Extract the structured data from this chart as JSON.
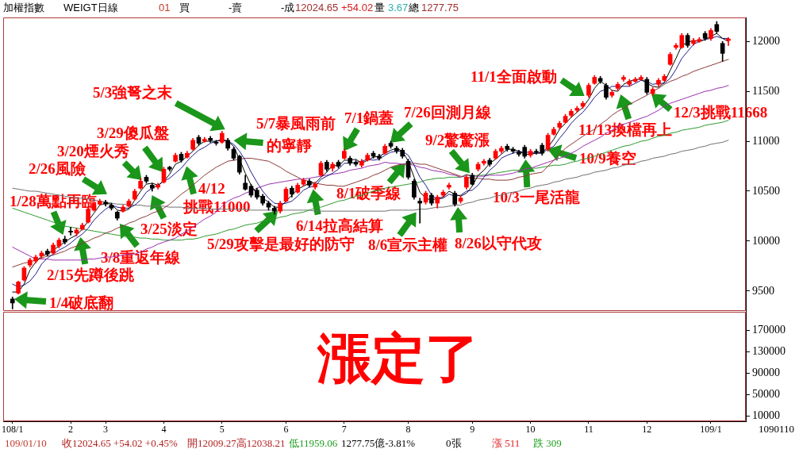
{
  "chart_data": [
    {
      "type": "candlestick",
      "title": "加權指數",
      "subtitle": "WEIGT日線",
      "categories": [
        null,
        null,
        null,
        null,
        null,
        null,
        null,
        null,
        null,
        null,
        null,
        null,
        null,
        null,
        null,
        null,
        null,
        null,
        null,
        null,
        null,
        null,
        null,
        null,
        null,
        null,
        null,
        null,
        null,
        null,
        null,
        null,
        null,
        null,
        null,
        null,
        null,
        null,
        null,
        null,
        null,
        null,
        null,
        null,
        null,
        null,
        null,
        null,
        null,
        null,
        null,
        null,
        null,
        null,
        null,
        null,
        null,
        null,
        null,
        null,
        null,
        null,
        null,
        null,
        null,
        null,
        null,
        null,
        null,
        null,
        null,
        null,
        null,
        null,
        null,
        null,
        null,
        null,
        null,
        null,
        null,
        null,
        null,
        null,
        null,
        null,
        null,
        null,
        null,
        null,
        null,
        null,
        null,
        null,
        null,
        null,
        null,
        null,
        null,
        null,
        null,
        null,
        null,
        null,
        null,
        null,
        null,
        null,
        null,
        null,
        null,
        null,
        null,
        null,
        null,
        null,
        null,
        null,
        null,
        null,
        null,
        null,
        null,
        null
      ],
      "ohlc": [
        [
          9420,
          9440,
          9320,
          9380
        ],
        [
          9480,
          9600,
          9470,
          9590
        ],
        [
          9610,
          9745,
          9600,
          9730
        ],
        [
          9760,
          9830,
          9740,
          9810
        ],
        [
          9800,
          9860,
          9780,
          9840
        ],
        [
          9850,
          9900,
          9830,
          9880
        ],
        [
          9900,
          9920,
          9850,
          9870
        ],
        [
          9880,
          9980,
          9870,
          9960
        ],
        [
          9950,
          10030,
          9930,
          10010
        ],
        [
          10020,
          10050,
          9970,
          9990
        ],
        [
          10100,
          10140,
          10060,
          10090
        ],
        [
          10080,
          10130,
          10050,
          10110
        ],
        [
          10120,
          10180,
          10110,
          10160
        ],
        [
          10190,
          10330,
          10180,
          10320
        ],
        [
          10310,
          10380,
          10300,
          10360
        ],
        [
          10370,
          10420,
          10360,
          10400
        ],
        [
          10390,
          10410,
          10350,
          10370
        ],
        [
          10360,
          10380,
          10310,
          10330
        ],
        [
          10290,
          10300,
          10210,
          10230
        ],
        [
          10300,
          10360,
          10290,
          10340
        ],
        [
          10350,
          10420,
          10340,
          10400
        ],
        [
          10420,
          10520,
          10410,
          10500
        ],
        [
          10530,
          10630,
          10520,
          10600
        ],
        [
          10640,
          10660,
          10580,
          10600
        ],
        [
          10560,
          10580,
          10500,
          10530
        ],
        [
          10540,
          10580,
          10520,
          10560
        ],
        [
          10590,
          10740,
          10580,
          10720
        ],
        [
          10740,
          10750,
          10700,
          10720
        ],
        [
          10800,
          10880,
          10790,
          10860
        ],
        [
          10870,
          10890,
          10790,
          10810
        ],
        [
          10840,
          10900,
          10830,
          10880
        ],
        [
          10920,
          11030,
          10910,
          11010
        ],
        [
          11040,
          11060,
          10960,
          10980
        ],
        [
          11000,
          11040,
          10990,
          11020
        ],
        [
          11030,
          11050,
          10990,
          11010
        ],
        [
          10990,
          11010,
          10960,
          10980
        ],
        [
          10990,
          11100,
          10980,
          11080
        ],
        [
          11010,
          11030,
          10910,
          10930
        ],
        [
          10920,
          10940,
          10810,
          10830
        ],
        [
          10850,
          10860,
          10670,
          10690
        ],
        [
          10580,
          10660,
          10510,
          10520
        ],
        [
          10550,
          10570,
          10440,
          10460
        ],
        [
          10510,
          10530,
          10420,
          10440
        ],
        [
          10450,
          10470,
          10360,
          10380
        ],
        [
          10380,
          10400,
          10310,
          10340
        ],
        [
          10330,
          10350,
          10270,
          10300
        ],
        [
          10300,
          10400,
          10280,
          10380
        ],
        [
          10400,
          10540,
          10390,
          10520
        ],
        [
          10530,
          10550,
          10440,
          10470
        ],
        [
          10490,
          10580,
          10480,
          10560
        ],
        [
          10570,
          10630,
          10550,
          10610
        ],
        [
          10600,
          10620,
          10540,
          10560
        ],
        [
          10540,
          10590,
          10520,
          10570
        ],
        [
          10660,
          10800,
          10650,
          10780
        ],
        [
          10790,
          10810,
          10700,
          10720
        ],
        [
          10730,
          10790,
          10700,
          10770
        ],
        [
          10790,
          10810,
          10730,
          10750
        ],
        [
          10830,
          10920,
          10820,
          10900
        ],
        [
          10830,
          10850,
          10760,
          10780
        ],
        [
          10790,
          10810,
          10750,
          10770
        ],
        [
          10760,
          10820,
          10740,
          10800
        ],
        [
          10810,
          10880,
          10800,
          10860
        ],
        [
          10880,
          10900,
          10830,
          10850
        ],
        [
          10850,
          10870,
          10810,
          10830
        ],
        [
          10880,
          10970,
          10870,
          10950
        ],
        [
          10980,
          11000,
          10930,
          10950
        ],
        [
          10930,
          10950,
          10880,
          10900
        ],
        [
          10910,
          10930,
          10830,
          10850
        ],
        [
          10800,
          10820,
          10620,
          10640
        ],
        [
          10600,
          10620,
          10420,
          10440
        ],
        [
          10400,
          10430,
          10180,
          10380
        ],
        [
          10390,
          10500,
          10370,
          10480
        ],
        [
          10460,
          10480,
          10360,
          10380
        ],
        [
          10380,
          10460,
          10330,
          10440
        ],
        [
          10460,
          10510,
          10440,
          10490
        ],
        [
          10540,
          10580,
          10520,
          10560
        ],
        [
          10480,
          10500,
          10350,
          10370
        ],
        [
          10400,
          10450,
          10380,
          10430
        ],
        [
          10540,
          10660,
          10520,
          10640
        ],
        [
          10660,
          10680,
          10560,
          10570
        ],
        [
          10720,
          10790,
          10700,
          10770
        ],
        [
          10780,
          10820,
          10760,
          10800
        ],
        [
          10810,
          10830,
          10750,
          10770
        ],
        [
          10830,
          10920,
          10820,
          10900
        ],
        [
          10900,
          10950,
          10880,
          10930
        ],
        [
          10950,
          10970,
          10900,
          10920
        ],
        [
          10920,
          10940,
          10880,
          10900
        ],
        [
          10890,
          10910,
          10850,
          10870
        ],
        [
          10940,
          10960,
          10830,
          10850
        ],
        [
          10860,
          10920,
          10840,
          10900
        ],
        [
          10900,
          10920,
          10870,
          10890
        ],
        [
          10960,
          10980,
          10860,
          10880
        ],
        [
          10920,
          11080,
          10900,
          11060
        ],
        [
          11070,
          11140,
          11060,
          11120
        ],
        [
          11140,
          11200,
          11120,
          11180
        ],
        [
          11190,
          11270,
          11180,
          11250
        ],
        [
          11260,
          11320,
          11240,
          11300
        ],
        [
          11310,
          11350,
          11290,
          11330
        ],
        [
          11350,
          11400,
          11330,
          11380
        ],
        [
          11460,
          11580,
          11440,
          11560
        ],
        [
          11580,
          11660,
          11570,
          11640
        ],
        [
          11630,
          11650,
          11580,
          11600
        ],
        [
          11560,
          11580,
          11420,
          11440
        ],
        [
          11460,
          11510,
          11440,
          11490
        ],
        [
          11530,
          11590,
          11510,
          11570
        ],
        [
          11620,
          11660,
          11600,
          11640
        ],
        [
          11570,
          11620,
          11550,
          11600
        ],
        [
          11600,
          11640,
          11590,
          11620
        ],
        [
          11620,
          11660,
          11610,
          11640
        ],
        [
          11620,
          11640,
          11470,
          11490
        ],
        [
          11480,
          11540,
          11460,
          11520
        ],
        [
          11570,
          11630,
          11550,
          11610
        ],
        [
          11610,
          11670,
          11600,
          11650
        ],
        [
          11770,
          11890,
          11760,
          11870
        ],
        [
          11940,
          11980,
          11920,
          11960
        ],
        [
          11940,
          12080,
          11930,
          12060
        ],
        [
          12060,
          12080,
          11940,
          11960
        ],
        [
          11980,
          12030,
          11960,
          12010
        ],
        [
          12000,
          12040,
          11990,
          12020
        ],
        [
          12080,
          12100,
          12010,
          12030
        ],
        [
          12030,
          12130,
          12010,
          12110
        ],
        [
          12170,
          12200,
          12080,
          12100
        ],
        [
          11980,
          12000,
          11800,
          11880
        ],
        [
          12009.27,
          12038.21,
          11959.06,
          12024.65
        ]
      ],
      "colors": [
        "#000000",
        "#ff0000",
        "#ff0000",
        "#ff0000",
        "#ff0000",
        "#ff0000",
        "#000000",
        "#ff0000",
        "#ff0000",
        "#000000",
        "#000000",
        "#ff0000",
        "#ff0000",
        "#ff0000",
        "#ff0000",
        "#ff0000",
        "#000000",
        "#000000",
        "#000000",
        "#ff0000",
        "#ff0000",
        "#ff0000",
        "#ff0000",
        "#000000",
        "#000000",
        "#ff0000",
        "#ff0000",
        "#000000",
        "#ff0000",
        "#000000",
        "#ff0000",
        "#ff0000",
        "#000000",
        "#ff0000",
        "#000000",
        "#000000",
        "#ff0000",
        "#000000",
        "#000000",
        "#000000",
        "#000000",
        "#000000",
        "#000000",
        "#000000",
        "#000000",
        "#000000",
        "#ff0000",
        "#ff0000",
        "#000000",
        "#ff0000",
        "#ff0000",
        "#000000",
        "#ff0000",
        "#ff0000",
        "#000000",
        "#ff0000",
        "#000000",
        "#ff0000",
        "#000000",
        "#000000",
        "#ff0000",
        "#ff0000",
        "#000000",
        "#000000",
        "#ff0000",
        "#000000",
        "#000000",
        "#000000",
        "#000000",
        "#000000",
        "#000000",
        "#ff0000",
        "#000000",
        "#ff0000",
        "#ff0000",
        "#ff0000",
        "#000000",
        "#ff0000",
        "#ff0000",
        "#000000",
        "#ff0000",
        "#ff0000",
        "#000000",
        "#ff0000",
        "#ff0000",
        "#000000",
        "#000000",
        "#000000",
        "#000000",
        "#ff0000",
        "#000000",
        "#000000",
        "#ff0000",
        "#ff0000",
        "#ff0000",
        "#ff0000",
        "#ff0000",
        "#ff0000",
        "#ff0000",
        "#ff0000",
        "#ff0000",
        "#000000",
        "#000000",
        "#ff0000",
        "#ff0000",
        "#ff0000",
        "#ff0000",
        "#ff0000",
        "#ff0000",
        "#000000",
        "#ff0000",
        "#ff0000",
        "#ff0000",
        "#ff0000",
        "#ff0000",
        "#ff0000",
        "#000000",
        "#ff0000",
        "#ff0000",
        "#000000",
        "#ff0000",
        "#000000",
        "#000000",
        "#ff0000"
      ],
      "series": [
        {
          "type": "line",
          "color": "#000000",
          "values": [
            9490,
            9490,
            9570,
            9710,
            9790,
            9850,
            9870,
            9910,
            9950,
            9990,
            10030,
            10060,
            10120,
            10200,
            10280,
            10360,
            10380,
            10370,
            10310,
            10300,
            10320,
            10410,
            10500,
            10570,
            10580,
            10560,
            10600,
            10670,
            10770,
            10800,
            10850,
            10900,
            10960,
            11000,
            11000,
            11000,
            11020,
            11000,
            10950,
            10820,
            10680,
            10560,
            10470,
            10430,
            10390,
            10340,
            10340,
            10400,
            10460,
            10520,
            10550,
            10580,
            10580,
            10640,
            10690,
            10760,
            10750,
            10810,
            10810,
            10820,
            10780,
            10810,
            10840,
            10850,
            10880,
            10910,
            10930,
            10900,
            10800,
            10640,
            10490,
            10430,
            10410,
            10430,
            10440,
            10500,
            10470,
            10450,
            10480,
            10550,
            10660,
            10710,
            10780,
            10820,
            10870,
            10920,
            10920,
            10900,
            10870,
            10870,
            10880,
            10890,
            10940,
            11020,
            11120,
            11180,
            11240,
            11290,
            11340,
            11420,
            11530,
            11600,
            11560,
            11510,
            11500,
            11570,
            11600,
            11620,
            11620,
            11580,
            11550,
            11540,
            11590,
            11710,
            11830,
            11960,
            11990,
            12010,
            12000,
            12020,
            12050,
            12080,
            12030,
            12000
          ]
        },
        {
          "type": "line",
          "color": "#1c1c8c",
          "values": [
            9570,
            9540,
            9560,
            9600,
            9670,
            9770,
            9830,
            9870,
            9910,
            9940,
            9980,
            10030,
            10070,
            10130,
            10210,
            10270,
            10320,
            10360,
            10340,
            10330,
            10330,
            10360,
            10410,
            10490,
            10530,
            10560,
            10600,
            10630,
            10680,
            10730,
            10800,
            10860,
            10910,
            10940,
            10980,
            11000,
            11010,
            11000,
            10970,
            10900,
            10810,
            10690,
            10590,
            10500,
            10430,
            10380,
            10370,
            10380,
            10400,
            10450,
            10510,
            10540,
            10550,
            10620,
            10650,
            10680,
            10720,
            10780,
            10780,
            10790,
            10800,
            10820,
            10810,
            10820,
            10860,
            10890,
            10900,
            10900,
            10860,
            10760,
            10640,
            10560,
            10460,
            10420,
            10430,
            10470,
            10450,
            10460,
            10500,
            10510,
            10560,
            10640,
            10710,
            10760,
            10830,
            10860,
            10880,
            10900,
            10890,
            10890,
            10880,
            10880,
            10920,
            10950,
            11030,
            11100,
            11180,
            11240,
            11290,
            11360,
            11440,
            11500,
            11520,
            11550,
            11550,
            11550,
            11550,
            11580,
            11610,
            11600,
            11570,
            11580,
            11580,
            11630,
            11720,
            11830,
            11900,
            11970,
            12000,
            12020,
            12030,
            12050,
            12030,
            12030
          ]
        },
        {
          "type": "line",
          "color": "#8b3a3a",
          "values": [
            9740,
            9760,
            9780,
            9790,
            9810,
            9830,
            9850,
            9860,
            9880,
            9900,
            9930,
            9950,
            9980,
            10000,
            10030,
            10050,
            10080,
            10100,
            10130,
            10150,
            10180,
            10200,
            10230,
            10250,
            10280,
            10300,
            10330,
            10370,
            10420,
            10470,
            10510,
            10560,
            10610,
            10660,
            10700,
            10740,
            10770,
            10800,
            10810,
            10820,
            10830,
            10830,
            10820,
            10810,
            10800,
            10770,
            10740,
            10700,
            10670,
            10640,
            10610,
            10600,
            10580,
            10570,
            10560,
            10560,
            10550,
            10550,
            10570,
            10590,
            10610,
            10630,
            10660,
            10680,
            10710,
            10740,
            10760,
            10770,
            10780,
            10780,
            10770,
            10770,
            10750,
            10730,
            10710,
            10690,
            10670,
            10650,
            10640,
            10630,
            10630,
            10620,
            10620,
            10610,
            10610,
            10610,
            10620,
            10640,
            10650,
            10670,
            10680,
            10690,
            10750,
            10810,
            10870,
            10930,
            10970,
            11010,
            11050,
            11090,
            11120,
            11170,
            11210,
            11260,
            11300,
            11330,
            11370,
            11400,
            11430,
            11460,
            11500,
            11530,
            11570,
            11600,
            11620,
            11650,
            11670,
            11700,
            11720,
            11740,
            11760,
            11780,
            11800,
            11820
          ]
        },
        {
          "type": "line",
          "color": "#9b30b0",
          "values": [
            9940,
            9910,
            9880,
            9850,
            9820,
            9820,
            9820,
            9810,
            9810,
            9810,
            9810,
            9810,
            9810,
            9820,
            9820,
            9830,
            9840,
            9840,
            9850,
            9860,
            9870,
            9870,
            9890,
            9920,
            9940,
            9970,
            9990,
            10010,
            10030,
            10070,
            10100,
            10140,
            10180,
            10220,
            10250,
            10290,
            10350,
            10400,
            10430,
            10450,
            10480,
            10500,
            10530,
            10550,
            10570,
            10580,
            10590,
            10600,
            10610,
            10620,
            10620,
            10630,
            10640,
            10650,
            10660,
            10670,
            10680,
            10690,
            10710,
            10720,
            10730,
            10750,
            10760,
            10770,
            10790,
            10780,
            10780,
            10770,
            10770,
            10760,
            10740,
            10730,
            10710,
            10700,
            10690,
            10670,
            10660,
            10640,
            10660,
            10650,
            10650,
            10650,
            10660,
            10660,
            10660,
            10670,
            10680,
            10700,
            10720,
            10730,
            10750,
            10770,
            10790,
            10810,
            10830,
            10850,
            10880,
            10910,
            10950,
            10980,
            11010,
            11040,
            11080,
            11110,
            11150,
            11170,
            11190,
            11210,
            11230,
            11250,
            11280,
            11310,
            11350,
            11380,
            11400,
            11420,
            11440,
            11460,
            11480,
            11500,
            11510,
            11530,
            11540,
            11560
          ]
        },
        {
          "type": "line",
          "color": "#2e9b2e",
          "values": [
            10330,
            10310,
            10290,
            10270,
            10250,
            10230,
            10210,
            10190,
            10170,
            10150,
            10140,
            10130,
            10120,
            10110,
            10100,
            10090,
            10080,
            10070,
            10060,
            10050,
            10040,
            10040,
            10030,
            10030,
            10020,
            10020,
            10010,
            10010,
            10010,
            10010,
            10020,
            10020,
            10030,
            10050,
            10060,
            10070,
            10090,
            10110,
            10120,
            10140,
            10160,
            10170,
            10180,
            10200,
            10210,
            10220,
            10240,
            10250,
            10270,
            10280,
            10290,
            10310,
            10330,
            10340,
            10360,
            10380,
            10400,
            10410,
            10430,
            10450,
            10460,
            10480,
            10500,
            10510,
            10530,
            10540,
            10550,
            10560,
            10570,
            10580,
            10590,
            10610,
            10620,
            10630,
            10630,
            10640,
            10640,
            10640,
            10670,
            10650,
            10660,
            10660,
            10670,
            10680,
            10690,
            10700,
            10710,
            10710,
            10720,
            10730,
            10730,
            10740,
            10750,
            10760,
            10760,
            10770,
            10790,
            10800,
            10820,
            10830,
            10850,
            10870,
            10890,
            10910,
            10930,
            10950,
            10960,
            10980,
            11000,
            11010,
            11030,
            11050,
            11060,
            11080,
            11090,
            11110,
            11120,
            11130,
            11140,
            11160,
            11170,
            11180,
            11190,
            11210
          ]
        },
        {
          "type": "line",
          "color": "#707070",
          "values": [
            10530,
            10520,
            10510,
            10500,
            10500,
            10490,
            10480,
            10470,
            10460,
            10450,
            10440,
            10430,
            10430,
            10420,
            10410,
            10400,
            10390,
            10380,
            10370,
            10370,
            10360,
            10360,
            10360,
            10350,
            10350,
            10350,
            10350,
            10340,
            10340,
            10340,
            10330,
            10330,
            10330,
            10330,
            10320,
            10320,
            10320,
            10320,
            10320,
            10320,
            10320,
            10310,
            10310,
            10310,
            10310,
            10310,
            10310,
            10310,
            10310,
            10310,
            10310,
            10310,
            10300,
            10300,
            10300,
            10300,
            10300,
            10300,
            10300,
            10300,
            10300,
            10300,
            10300,
            10300,
            10300,
            10310,
            10310,
            10310,
            10310,
            10310,
            10320,
            10320,
            10330,
            10340,
            10340,
            10350,
            10360,
            10360,
            10380,
            10390,
            10410,
            10420,
            10430,
            10450,
            10460,
            10480,
            10490,
            10500,
            10520,
            10530,
            10550,
            10560,
            10570,
            10590,
            10600,
            10620,
            10630,
            10640,
            10660,
            10670,
            10690,
            10700,
            10710,
            10730,
            10740,
            10760,
            10770,
            10780,
            10800,
            10810,
            10830,
            10840,
            10850,
            10870,
            10880,
            10900,
            10910,
            10920,
            10940,
            10950,
            10970,
            10980,
            10990,
            11010
          ]
        }
      ],
      "ylim": [
        9300,
        12240
      ],
      "yticks": [
        9500,
        10000,
        10500,
        11000,
        11500,
        12000
      ],
      "tick_labels": "y",
      "annotations": [
        "01",
        "買",
        "-賣",
        "-成",
        "12024.65",
        "+54.02",
        "量",
        "3.67",
        "總",
        "1277.75",
        "1/4破底翻",
        "1/28萬點再臨",
        {
          "text": "2/15先蹲後跳",
          "y": 10040
        },
        {
          "text": "2/26風險",
          "y": 10470
        },
        "3/8重返年線",
        "3/20煙火秀",
        "3/25淡定",
        "3/29傻瓜盤",
        {
          "text": "4/12",
          "y": 10750
        },
        "挑戰11000",
        "5/3強弩之末",
        "5/7暴風雨前",
        "的寧靜",
        {
          "text": "5/29攻擊是最好的防守",
          "y": 10300
        },
        {
          "text": "6/14拉高結算",
          "y": 10520
        },
        {
          "text": "7/1鍋蓋",
          "y": 10900
        },
        "7/26回測月線",
        {
          "text": "8/1破季線",
          "y": 10780
        },
        {
          "text": "8/6宣示主權",
          "y": 10290
        },
        "8/26以守代攻",
        {
          "text": "9/2驚驚漲",
          "y": 10680
        },
        "10/3一尾活龍",
        {
          "text": "10/9養空",
          "y": 10920
        },
        "11/1全面啟動",
        "11/13換檔再上",
        "12/3挑戰11668",
        "1090110"
      ]
    },
    {
      "type": "bar",
      "categories": [
        "108/1",
        null,
        null,
        null,
        null,
        null,
        null,
        null,
        null,
        null,
        "2",
        null,
        null,
        null,
        null,
        null,
        "3",
        null,
        null,
        null,
        null,
        null,
        null,
        null,
        null,
        null,
        "4",
        null,
        null,
        null,
        null,
        null,
        null,
        null,
        null,
        null,
        "5",
        null,
        null,
        null,
        null,
        null,
        null,
        null,
        null,
        null,
        null,
        "6",
        null,
        null,
        null,
        null,
        null,
        null,
        null,
        null,
        null,
        "7",
        null,
        null,
        null,
        null,
        null,
        null,
        null,
        null,
        null,
        null,
        "8",
        null,
        null,
        null,
        null,
        null,
        null,
        null,
        null,
        null,
        null,
        "9",
        null,
        null,
        null,
        null,
        null,
        null,
        null,
        null,
        null,
        "10",
        null,
        null,
        null,
        null,
        null,
        null,
        null,
        null,
        null,
        "11",
        null,
        null,
        null,
        null,
        null,
        null,
        null,
        null,
        null,
        "12",
        null,
        null,
        null,
        null,
        null,
        null,
        null,
        null,
        null,
        null,
        "109/1",
        null,
        null,
        null
      ],
      "values": [
        null,
        null,
        null,
        null,
        null,
        null,
        null,
        null,
        null,
        null,
        null,
        null,
        null,
        null,
        null,
        null,
        null,
        null,
        null,
        null,
        null,
        null,
        null,
        null,
        null,
        null,
        null,
        null,
        null,
        null,
        null,
        null,
        null,
        null,
        null,
        null,
        null,
        null,
        null,
        null,
        null,
        null,
        null,
        null,
        null,
        null,
        null,
        null,
        null,
        null,
        null,
        null,
        null,
        null,
        null,
        null,
        null,
        null,
        null,
        null,
        null,
        null,
        null,
        null,
        null,
        null,
        null,
        null,
        null,
        null,
        null,
        null,
        null,
        null,
        null,
        null,
        null,
        null,
        null,
        null,
        null,
        null,
        null,
        null,
        null,
        null,
        null,
        null,
        null,
        null,
        null,
        null,
        null,
        null,
        null,
        null,
        null,
        null,
        null,
        null,
        null,
        null,
        null,
        null,
        null,
        null,
        null,
        null,
        null,
        null,
        null,
        null,
        null,
        null,
        null,
        null,
        null,
        null,
        null,
        null,
        null,
        null,
        null,
        null
      ],
      "ylim": [
        0,
        205000
      ],
      "yticks": [
        10000,
        50000,
        90000,
        130000,
        170000
      ],
      "annotations": [
        "漲定了",
        "109/01/10",
        "收12024.65 +54.02 +0.45%",
        "開12009.27高12038.21",
        "低11959.06",
        "1277.75億-3.81%",
        "0張",
        "漲 511",
        "跌 309"
      ]
    }
  ]
}
